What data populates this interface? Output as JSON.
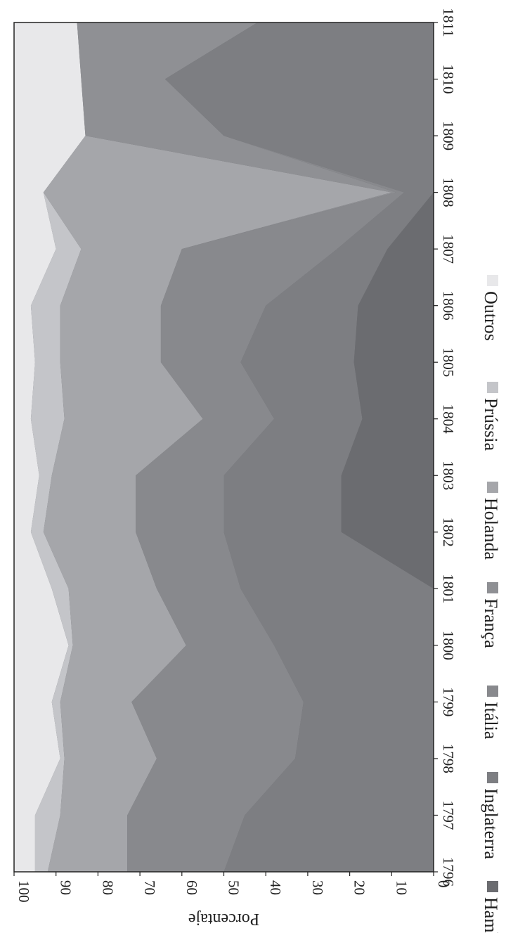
{
  "chart_data": {
    "type": "area",
    "stacked": true,
    "orientation": "rotated-90-clockwise",
    "title": "",
    "xlabel": "",
    "ylabel": "Porcentaje",
    "ylim": [
      0,
      100
    ],
    "yticks": [
      0,
      10,
      20,
      30,
      40,
      50,
      60,
      70,
      80,
      90,
      100
    ],
    "x": [
      "1796",
      "1797",
      "1798",
      "1799",
      "1800",
      "1801",
      "1802",
      "1803",
      "1804",
      "1805",
      "1806",
      "1807",
      "1808",
      "1809",
      "1810",
      "1811"
    ],
    "legend_position": "bottom",
    "grid": false,
    "cumulative_series": [
      {
        "name": "Hamburgo",
        "color": "#6b6c70",
        "values": [
          0,
          0,
          0,
          0,
          0,
          0,
          22,
          22,
          17,
          19,
          18,
          11,
          0,
          0,
          0,
          0
        ]
      },
      {
        "name": "Inglaterra",
        "color": "#7d7e82",
        "values": [
          50,
          45,
          33,
          31,
          38,
          46,
          50,
          50,
          38,
          46,
          40,
          23,
          7,
          50,
          64,
          42
        ]
      },
      {
        "name": "Itália",
        "color": "#88898d",
        "values": [
          73,
          73,
          66,
          72,
          59,
          66,
          71,
          71,
          55,
          65,
          65,
          60,
          9,
          50,
          64,
          42
        ]
      },
      {
        "name": "França",
        "color": "#8f9094",
        "values": [
          73,
          73,
          66,
          72,
          59,
          66,
          71,
          71,
          55,
          65,
          65,
          60,
          10,
          83,
          84,
          85
        ]
      },
      {
        "name": "Holanda",
        "color": "#a5a6aa",
        "values": [
          92,
          89,
          88,
          89,
          86,
          87,
          93,
          91,
          88,
          89,
          89,
          84,
          93,
          83,
          84,
          85
        ]
      },
      {
        "name": "Prússia",
        "color": "#c4c5c9",
        "values": [
          95,
          95,
          89,
          91,
          87,
          91,
          96,
          94,
          96,
          95,
          96,
          90,
          93,
          83,
          84,
          85
        ]
      },
      {
        "name": "Outros",
        "color": "#e8e8ea",
        "values": [
          100,
          100,
          100,
          100,
          100,
          100,
          100,
          100,
          100,
          100,
          100,
          100,
          100,
          100,
          100,
          100
        ]
      }
    ],
    "series_lower_extra": {
      "Prússia": [
        97,
        97,
        90,
        92,
        91,
        96,
        98,
        96,
        97,
        96,
        96,
        90,
        93,
        83,
        84,
        85
      ]
    },
    "legend": [
      "Hamburgo",
      "Inglaterra",
      "Itália",
      "França",
      "Holanda",
      "Prússia",
      "Outros"
    ]
  }
}
